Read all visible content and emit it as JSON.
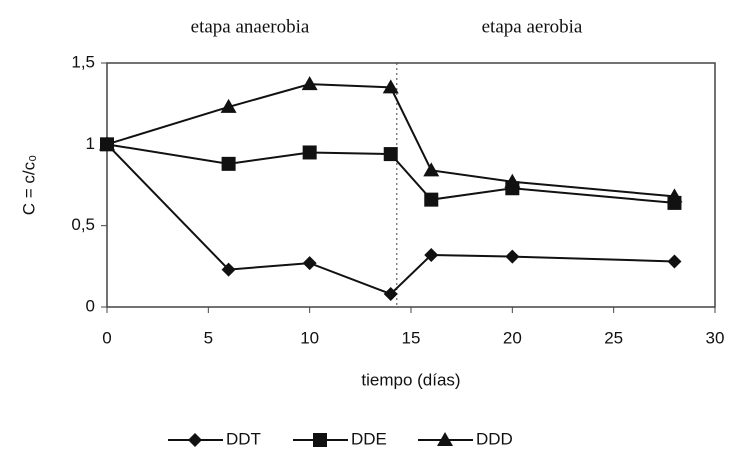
{
  "chart_data": {
    "type": "line",
    "annotations": [
      "etapa anaerobia",
      "etapa aerobia"
    ],
    "xlabel": "tiempo (días)",
    "ylabel": "C = c/c₀",
    "x": [
      0,
      6,
      10,
      14,
      16,
      20,
      28
    ],
    "series": [
      {
        "name": "DDT",
        "color": "#111111",
        "marker": "diamond",
        "values": [
          1,
          0.23,
          0.27,
          0.08,
          0.32,
          0.31,
          0.28
        ]
      },
      {
        "name": "DDE",
        "color": "#111111",
        "marker": "square",
        "values": [
          1,
          0.88,
          0.95,
          0.94,
          0.66,
          0.73,
          0.64
        ]
      },
      {
        "name": "DDD",
        "color": "#111111",
        "marker": "triangle",
        "values": [
          1,
          1.23,
          1.37,
          1.35,
          0.84,
          0.77,
          0.68
        ]
      }
    ],
    "divider_x": 14.3,
    "xlim": [
      0,
      30
    ],
    "xticks": [
      0,
      5,
      10,
      15,
      20,
      25,
      30
    ],
    "ylim": [
      0,
      1.5
    ],
    "yticks": [
      0,
      {
        "value": 0.5,
        "label": "0,5"
      },
      1,
      {
        "value": 1.5,
        "label": "1,5"
      }
    ],
    "legend": "bottom"
  }
}
